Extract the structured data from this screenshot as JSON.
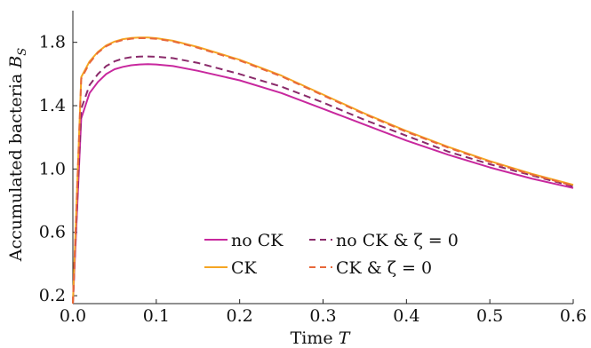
{
  "chart_data": {
    "type": "line",
    "xlabel": "Time T",
    "ylabel": "Accumulated bacteria B_S",
    "xlim": [
      0.0,
      0.6
    ],
    "ylim": [
      0.15,
      2.0
    ],
    "xticks": [
      "0.0",
      "0.1",
      "0.2",
      "0.3",
      "0.4",
      "0.5",
      "0.6"
    ],
    "xtick_values": [
      0.0,
      0.1,
      0.2,
      0.3,
      0.4,
      0.5,
      0.6
    ],
    "yticks": [
      "0.2",
      "0.6",
      "1.0",
      "1.4",
      "1.8"
    ],
    "ytick_values": [
      0.2,
      0.6,
      1.0,
      1.4,
      1.8
    ],
    "grid": false,
    "legend_position": "bottom-center",
    "series": [
      {
        "name": "no CK",
        "color": "#c8289e",
        "dash": "solid",
        "x": [
          0.0,
          0.01,
          0.02,
          0.03,
          0.04,
          0.05,
          0.06,
          0.07,
          0.08,
          0.09,
          0.1,
          0.12,
          0.15,
          0.2,
          0.25,
          0.3,
          0.35,
          0.4,
          0.45,
          0.5,
          0.55,
          0.6
        ],
        "y": [
          0.15,
          1.32,
          1.48,
          1.55,
          1.6,
          1.63,
          1.645,
          1.655,
          1.66,
          1.662,
          1.66,
          1.65,
          1.62,
          1.56,
          1.48,
          1.38,
          1.28,
          1.18,
          1.09,
          1.01,
          0.94,
          0.88
        ]
      },
      {
        "name": "CK",
        "color": "#f5a623",
        "dash": "solid",
        "x": [
          0.0,
          0.01,
          0.02,
          0.03,
          0.04,
          0.05,
          0.06,
          0.07,
          0.08,
          0.09,
          0.1,
          0.12,
          0.15,
          0.2,
          0.25,
          0.3,
          0.35,
          0.4,
          0.45,
          0.5,
          0.55,
          0.6
        ],
        "y": [
          0.15,
          1.58,
          1.68,
          1.74,
          1.78,
          1.805,
          1.82,
          1.828,
          1.83,
          1.83,
          1.826,
          1.81,
          1.77,
          1.69,
          1.59,
          1.47,
          1.35,
          1.24,
          1.14,
          1.05,
          0.97,
          0.9
        ]
      },
      {
        "name": "no CK & ζ = 0",
        "color": "#8a2a6a",
        "dash": "dashed",
        "x": [
          0.0,
          0.01,
          0.02,
          0.03,
          0.04,
          0.05,
          0.06,
          0.07,
          0.08,
          0.09,
          0.1,
          0.12,
          0.15,
          0.2,
          0.25,
          0.3,
          0.35,
          0.4,
          0.45,
          0.5,
          0.55,
          0.6
        ],
        "y": [
          0.15,
          1.38,
          1.53,
          1.6,
          1.65,
          1.68,
          1.697,
          1.706,
          1.71,
          1.711,
          1.709,
          1.7,
          1.67,
          1.6,
          1.52,
          1.42,
          1.31,
          1.21,
          1.11,
          1.03,
          0.96,
          0.89
        ]
      },
      {
        "name": "CK & ζ = 0",
        "color": "#e8683a",
        "dash": "dashed",
        "x": [
          0.0,
          0.01,
          0.02,
          0.03,
          0.04,
          0.05,
          0.06,
          0.07,
          0.08,
          0.09,
          0.1,
          0.12,
          0.15,
          0.2,
          0.25,
          0.3,
          0.35,
          0.4,
          0.45,
          0.5,
          0.55,
          0.6
        ],
        "y": [
          0.15,
          1.57,
          1.67,
          1.735,
          1.775,
          1.8,
          1.815,
          1.823,
          1.826,
          1.826,
          1.822,
          1.806,
          1.765,
          1.685,
          1.585,
          1.465,
          1.345,
          1.235,
          1.135,
          1.045,
          0.965,
          0.895
        ]
      }
    ]
  }
}
